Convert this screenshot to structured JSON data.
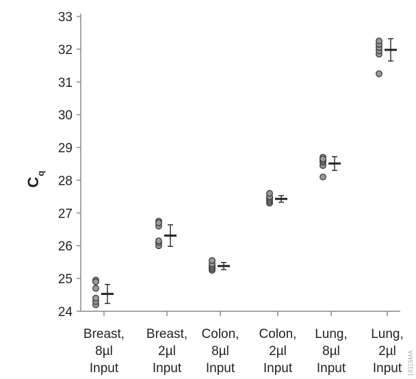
{
  "chart_data": {
    "type": "scatter",
    "ylabel": "C",
    "ylabel_subscript": "q",
    "ylim": [
      24,
      33
    ],
    "yticks": [
      "24",
      "25",
      "26",
      "27",
      "28",
      "29",
      "30",
      "31",
      "32",
      "33"
    ],
    "grid": false,
    "categories": [
      [
        "Breast,",
        "8µl",
        "Input"
      ],
      [
        "Breast,",
        "2µl",
        "Input"
      ],
      [
        "Colon,",
        "8µl",
        "Input"
      ],
      [
        "Colon,",
        "2µl",
        "Input"
      ],
      [
        "Lung,",
        "8µl",
        "Input"
      ],
      [
        "Lung,",
        "2µl",
        "Input"
      ]
    ],
    "series": [
      {
        "points": [
          [
            24.2,
            24.3,
            24.4,
            24.7,
            24.95,
            24.9
          ],
          [
            26.0,
            26.1,
            26.15,
            26.6,
            26.75,
            26.7
          ],
          [
            25.25,
            25.3,
            25.35,
            25.4,
            25.45,
            25.55
          ],
          [
            27.3,
            27.35,
            27.4,
            27.45,
            27.5,
            27.6
          ],
          [
            28.1,
            28.45,
            28.55,
            28.6,
            28.7,
            28.65
          ],
          [
            31.25,
            31.85,
            31.95,
            32.05,
            32.15,
            32.25
          ]
        ],
        "mean": [
          24.53,
          26.31,
          25.38,
          27.43,
          28.51,
          31.98
        ],
        "error": [
          0.29,
          0.33,
          0.11,
          0.1,
          0.21,
          0.34
        ]
      }
    ],
    "colors": {
      "point_fill": "#9a9a9a",
      "point_stroke": "#3a3a3a",
      "mean_bar": "#222222",
      "axis": "#888888"
    }
  },
  "watermark": "18115MA"
}
